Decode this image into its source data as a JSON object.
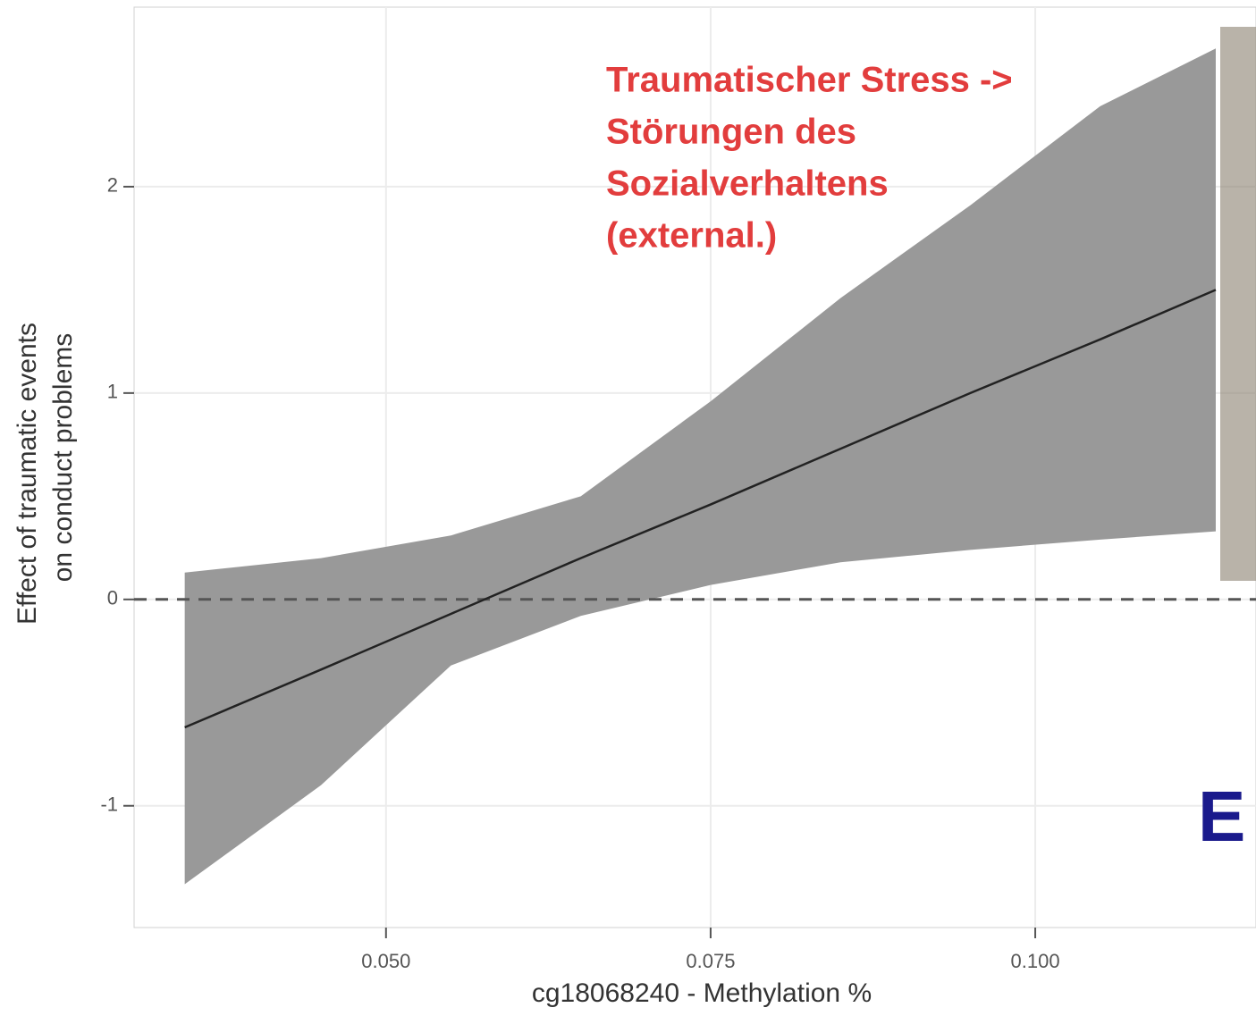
{
  "chart_data": {
    "type": "line",
    "x_label": "cg18068240 - Methylation %",
    "y_label": [
      "Effect of traumatic events",
      "on conduct problems"
    ],
    "annotation": [
      "Traumatischer Stress ->",
      "Störungen des",
      "Sozialverhaltens",
      "(external.)"
    ],
    "corner_text": "E",
    "x": [
      0.0345,
      0.045,
      0.055,
      0.065,
      0.075,
      0.085,
      0.095,
      0.105,
      0.1139
    ],
    "series": [
      {
        "name": "fit",
        "color": "#222222",
        "values": [
          -0.62,
          -0.34,
          -0.07,
          0.2,
          0.46,
          0.73,
          1.0,
          1.26,
          1.5
        ]
      }
    ],
    "band": {
      "color": "#999999",
      "lower": [
        -1.38,
        -0.9,
        -0.32,
        -0.08,
        0.07,
        0.18,
        0.24,
        0.29,
        0.33
      ],
      "upper": [
        0.13,
        0.2,
        0.31,
        0.5,
        0.96,
        1.46,
        1.91,
        2.39,
        2.67
      ]
    },
    "reference_line": 0,
    "xlim": [
      0.0306,
      0.117
    ],
    "ylim": [
      -1.59,
      2.87
    ],
    "xticks": [
      {
        "value": 0.05,
        "label": "0.050"
      },
      {
        "value": 0.075,
        "label": "0.075"
      },
      {
        "value": 0.1,
        "label": "0.100"
      }
    ],
    "yticks": [
      -1,
      0,
      1,
      2
    ],
    "grid": true
  }
}
